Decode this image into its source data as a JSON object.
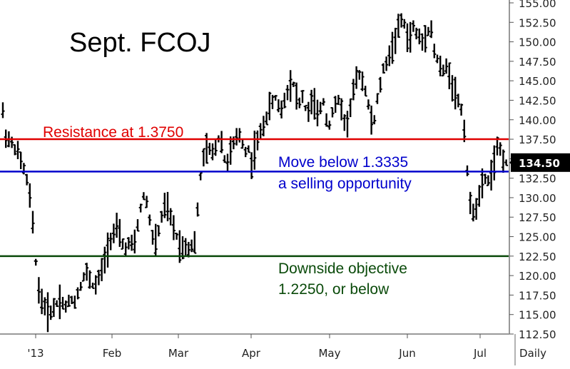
{
  "chart_data": {
    "type": "ohlc",
    "title": "Sept. FCOJ",
    "frequency_label": "Daily",
    "y_axis": {
      "min": 112.5,
      "max": 155.0,
      "ticks": [
        "112.50",
        "115.00",
        "117.50",
        "120.00",
        "122.50",
        "125.00",
        "127.50",
        "130.00",
        "132.50",
        "135.00",
        "137.50",
        "140.00",
        "142.50",
        "145.00",
        "147.50",
        "150.00",
        "152.50",
        "155.00"
      ],
      "position": "right"
    },
    "x_axis": {
      "labels": [
        "'13",
        "Feb",
        "Mar",
        "Apr",
        "May",
        "Jun",
        "Jul"
      ]
    },
    "last_price": "134.50",
    "reference_lines": [
      {
        "name": "resistance",
        "value": 137.5,
        "color": "#e00000",
        "label": "Resistance at 1.3750"
      },
      {
        "name": "sell-trigger",
        "value": 133.35,
        "color": "#0000cc",
        "label": "Move below 1.3335",
        "label2": "a selling opportunity"
      },
      {
        "name": "objective",
        "value": 122.5,
        "color": "#0a4a0a",
        "label": "Downside objective",
        "label2": "1.2250, or below"
      }
    ],
    "grid": false,
    "legend": "none",
    "price_path": [
      [
        0,
        142
      ],
      [
        4,
        141
      ],
      [
        8,
        138
      ],
      [
        12,
        137.5
      ],
      [
        16,
        137
      ],
      [
        20,
        136.5
      ],
      [
        24,
        136
      ],
      [
        28,
        135
      ],
      [
        32,
        134
      ],
      [
        36,
        133
      ],
      [
        40,
        131
      ],
      [
        44,
        129
      ],
      [
        48,
        124
      ],
      [
        52,
        120
      ],
      [
        56,
        117
      ],
      [
        60,
        116.5
      ],
      [
        64,
        116
      ],
      [
        68,
        115
      ],
      [
        72,
        115.5
      ],
      [
        76,
        116
      ],
      [
        80,
        116.5
      ],
      [
        84,
        117
      ],
      [
        88,
        116.5
      ],
      [
        92,
        116
      ],
      [
        96,
        116.5
      ],
      [
        100,
        117
      ],
      [
        104,
        116.5
      ],
      [
        108,
        117.5
      ],
      [
        112,
        118.5
      ],
      [
        116,
        119.5
      ],
      [
        120,
        120.5
      ],
      [
        124,
        120
      ],
      [
        128,
        119
      ],
      [
        132,
        118.5
      ],
      [
        136,
        119
      ],
      [
        140,
        120
      ],
      [
        144,
        121
      ],
      [
        148,
        122.5
      ],
      [
        152,
        124
      ],
      [
        156,
        125
      ],
      [
        160,
        125.5
      ],
      [
        164,
        126
      ],
      [
        168,
        125
      ],
      [
        172,
        124
      ],
      [
        176,
        123.5
      ],
      [
        180,
        124
      ],
      [
        184,
        124
      ],
      [
        188,
        123.5
      ],
      [
        192,
        126
      ],
      [
        196,
        128
      ],
      [
        200,
        130
      ],
      [
        204,
        130.5
      ],
      [
        208,
        128
      ],
      [
        212,
        126
      ],
      [
        216,
        124
      ],
      [
        220,
        124.5
      ],
      [
        224,
        126.5
      ],
      [
        228,
        128
      ],
      [
        232,
        129
      ],
      [
        236,
        128.5
      ],
      [
        240,
        127
      ],
      [
        244,
        126
      ],
      [
        248,
        125
      ],
      [
        252,
        124
      ],
      [
        256,
        123.5
      ],
      [
        260,
        124
      ],
      [
        264,
        123.5
      ],
      [
        268,
        124
      ],
      [
        272,
        123.5
      ],
      [
        276,
        127
      ],
      [
        280,
        132
      ],
      [
        284,
        134.5
      ],
      [
        288,
        136
      ],
      [
        292,
        136.5
      ],
      [
        296,
        135.5
      ],
      [
        300,
        136
      ],
      [
        304,
        137
      ],
      [
        308,
        138
      ],
      [
        312,
        137
      ],
      [
        316,
        134
      ],
      [
        320,
        135
      ],
      [
        324,
        136
      ],
      [
        328,
        137
      ],
      [
        332,
        137.5
      ],
      [
        336,
        138
      ],
      [
        340,
        137
      ],
      [
        344,
        136
      ],
      [
        348,
        136.5
      ],
      [
        352,
        134
      ],
      [
        356,
        136
      ],
      [
        360,
        137
      ],
      [
        364,
        138
      ],
      [
        368,
        139
      ],
      [
        372,
        140
      ],
      [
        376,
        141
      ],
      [
        380,
        142
      ],
      [
        384,
        142.5
      ],
      [
        388,
        143
      ],
      [
        392,
        141
      ],
      [
        396,
        141.5
      ],
      [
        400,
        143
      ],
      [
        404,
        144
      ],
      [
        408,
        145
      ],
      [
        412,
        144.5
      ],
      [
        416,
        143
      ],
      [
        420,
        142
      ],
      [
        424,
        143
      ],
      [
        428,
        141.5
      ],
      [
        432,
        141
      ],
      [
        436,
        142
      ],
      [
        440,
        142.5
      ],
      [
        444,
        140
      ],
      [
        448,
        141
      ],
      [
        452,
        143
      ],
      [
        456,
        141
      ],
      [
        460,
        139
      ],
      [
        464,
        140
      ],
      [
        468,
        142
      ],
      [
        472,
        141.5
      ],
      [
        476,
        143
      ],
      [
        480,
        141
      ],
      [
        484,
        139
      ],
      [
        488,
        140
      ],
      [
        492,
        142
      ],
      [
        496,
        144
      ],
      [
        500,
        145
      ],
      [
        504,
        146
      ],
      [
        508,
        145
      ],
      [
        512,
        144
      ],
      [
        516,
        142
      ],
      [
        520,
        140
      ],
      [
        524,
        139.5
      ],
      [
        528,
        142
      ],
      [
        532,
        144
      ],
      [
        536,
        146
      ],
      [
        540,
        147
      ],
      [
        544,
        148
      ],
      [
        548,
        148.5
      ],
      [
        552,
        150
      ],
      [
        556,
        151
      ],
      [
        560,
        152
      ],
      [
        564,
        153
      ],
      [
        568,
        152
      ],
      [
        572,
        150
      ],
      [
        576,
        151
      ],
      [
        580,
        152
      ],
      [
        584,
        151
      ],
      [
        588,
        150.5
      ],
      [
        592,
        150
      ],
      [
        596,
        151
      ],
      [
        600,
        151.5
      ],
      [
        604,
        152
      ],
      [
        608,
        149
      ],
      [
        612,
        148
      ],
      [
        616,
        147
      ],
      [
        620,
        146
      ],
      [
        624,
        146.5
      ],
      [
        628,
        147
      ],
      [
        632,
        145
      ],
      [
        636,
        144
      ],
      [
        640,
        143
      ],
      [
        644,
        142
      ],
      [
        648,
        141
      ],
      [
        652,
        138
      ],
      [
        656,
        132
      ],
      [
        660,
        128
      ],
      [
        664,
        128.5
      ],
      [
        668,
        129
      ],
      [
        672,
        130
      ],
      [
        676,
        131.5
      ],
      [
        680,
        132.5
      ],
      [
        684,
        132
      ],
      [
        688,
        133
      ],
      [
        692,
        134
      ],
      [
        696,
        136
      ],
      [
        700,
        136.5
      ],
      [
        704,
        135.5
      ],
      [
        708,
        134.5
      ]
    ]
  }
}
